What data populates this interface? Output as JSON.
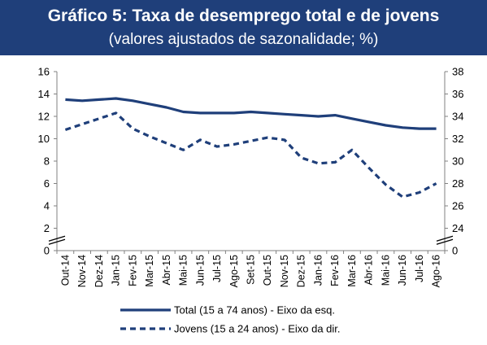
{
  "header": {
    "title": "Gráfico 5: Taxa de desemprego total e de jovens",
    "subtitle": "(valores ajustados de sazonalidade; %)"
  },
  "chart_data": {
    "type": "line",
    "categories": [
      "Out-14",
      "Nov-14",
      "Dez-14",
      "Jan-15",
      "Fev-15",
      "Mar-15",
      "Abr-15",
      "Mai-15",
      "Jun-15",
      "Jul-15",
      "Ago-15",
      "Set-15",
      "Out-15",
      "Nov-15",
      "Dez-15",
      "Jan-16",
      "Fev-16",
      "Mar-16",
      "Abr-16",
      "Mai-16",
      "Jun-16",
      "Jul-16",
      "Ago-16"
    ],
    "left_axis": {
      "ylim": [
        0,
        16
      ],
      "ticks": [
        0,
        2,
        4,
        6,
        8,
        10,
        12,
        14,
        16
      ],
      "break": true
    },
    "right_axis": {
      "ylim": [
        22,
        38
      ],
      "ticks": [
        0,
        24,
        26,
        28,
        30,
        32,
        34,
        36,
        38
      ],
      "break": true
    },
    "series": [
      {
        "name": "Total (15 a 74 anos) - Eixo da esq.",
        "axis": "left",
        "style": "solid",
        "color": "#1f3f7a",
        "values": [
          13.5,
          13.4,
          13.5,
          13.6,
          13.4,
          13.1,
          12.8,
          12.4,
          12.3,
          12.3,
          12.3,
          12.4,
          12.3,
          12.2,
          12.1,
          12.0,
          12.1,
          11.8,
          11.5,
          11.2,
          11.0,
          10.9,
          10.9
        ]
      },
      {
        "name": "Jovens (15 a 24 anos) - Eixo da dir.",
        "axis": "right",
        "style": "dashed",
        "color": "#1f3f7a",
        "values": [
          32.8,
          33.3,
          33.8,
          34.3,
          32.9,
          32.2,
          31.6,
          31.0,
          31.9,
          31.3,
          31.5,
          31.8,
          32.1,
          31.9,
          30.3,
          29.8,
          29.9,
          31.0,
          29.4,
          27.9,
          26.8,
          27.2,
          28.0
        ]
      }
    ]
  }
}
